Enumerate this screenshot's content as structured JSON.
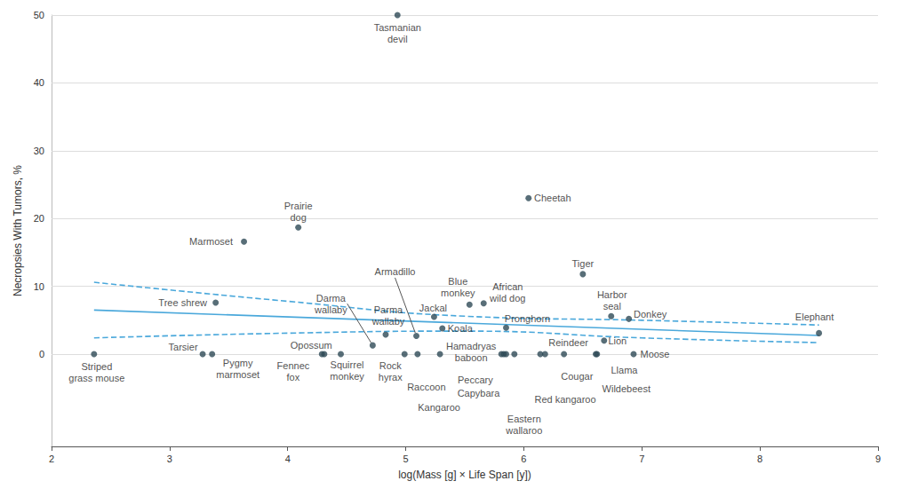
{
  "chart_data": {
    "type": "scatter",
    "x_label": "log(Mass [g] × Life Span [y])",
    "y_label": "Necropsies With Tumors, %",
    "xlim": [
      2,
      9
    ],
    "xticks": [
      2,
      3,
      4,
      5,
      6,
      7,
      8,
      9
    ],
    "ylim": [
      -13.6,
      50
    ],
    "yticks": [
      0,
      10,
      20,
      30,
      40,
      50
    ],
    "grid": true,
    "series": [
      {
        "type": "scatter",
        "color": "#2e4a56",
        "marker": "circle",
        "labels": [
          "Striped\ngrass mouse",
          "Tarsier",
          "Pygmy\nmarmoset",
          "Marmoset",
          "Tree shrew",
          "Prairie\ndog",
          "Opossum",
          "Fennec\nfox",
          "Squirrel\nmonkey",
          "Darma\nwallaby",
          "Parma\nwallaby",
          "Tasmanian\ndevil",
          "Rock\nhyrax",
          "Armadillo",
          "Raccoon",
          "Jackal",
          "Kangaroo",
          "Koala",
          "Blue\nmonkey",
          "African\nwild dog",
          "Hamadryas\nbaboon",
          "Peccary",
          "Capybara",
          "Pronghorn",
          "Eastern\nwallaroo",
          "Cheetah",
          "Red kangaroo",
          "Cougar",
          "Reindeer",
          "Tiger",
          "Llama",
          "Wildebeest",
          "Lion",
          "Harbor\nseal",
          "Donkey",
          "Moose",
          "Elephant"
        ],
        "x": [
          2.36,
          3.28,
          3.36,
          3.63,
          3.39,
          4.09,
          4.29,
          4.31,
          4.45,
          4.72,
          4.83,
          4.93,
          4.99,
          5.09,
          5.1,
          5.24,
          5.29,
          5.31,
          5.54,
          5.66,
          5.81,
          5.83,
          5.85,
          5.85,
          5.92,
          6.04,
          6.14,
          6.18,
          6.34,
          6.5,
          6.61,
          6.62,
          6.68,
          6.74,
          6.89,
          6.93,
          8.5
        ],
        "values": [
          0,
          0,
          0,
          16.6,
          7.6,
          18.7,
          0,
          0,
          0,
          1.3,
          2.9,
          50,
          0,
          2.7,
          0,
          5.5,
          0,
          3.8,
          7.3,
          7.5,
          0,
          0,
          0,
          3.9,
          0,
          23.0,
          0,
          0,
          0,
          11.8,
          0,
          0,
          2.0,
          5.6,
          5.2,
          0,
          3.1
        ]
      },
      {
        "type": "line",
        "color": "#4aa8db",
        "line_style": "dashed",
        "x": [
          2.36,
          4,
          5.5,
          7,
          8.5
        ],
        "values": [
          10.6,
          7.8,
          5.6,
          5.0,
          4.3
        ]
      },
      {
        "type": "line",
        "color": "#4aa8db",
        "line_style": "dashed",
        "x": [
          2.36,
          4,
          5.5,
          7,
          8.5
        ],
        "values": [
          2.4,
          3.1,
          3.4,
          2.4,
          1.7
        ]
      },
      {
        "type": "line",
        "color": "#4aa8db",
        "line_style": "solid",
        "x": [
          2.36,
          8.5
        ],
        "values": [
          6.5,
          2.75
        ]
      }
    ]
  }
}
